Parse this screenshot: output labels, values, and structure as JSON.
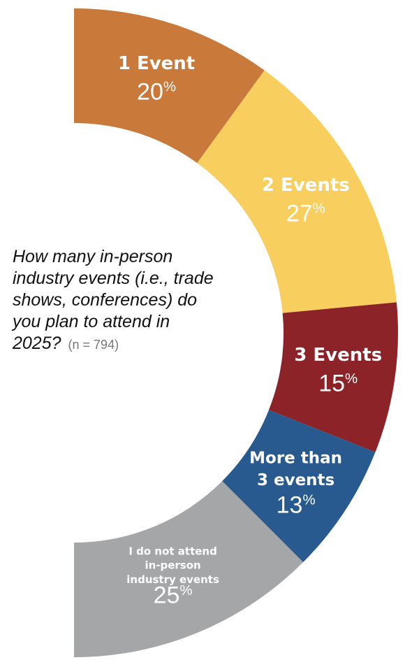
{
  "question": {
    "text": "How many in-person industry events (i.e., trade shows, conferences) do you plan to attend in 2025?",
    "n_label": "(n = 794)"
  },
  "chart_data": {
    "type": "pie",
    "variant": "half-donut",
    "categories": [
      "1 Event",
      "2 Events",
      "3 Events",
      "More than 3 events",
      "I do not attend in-person industry events"
    ],
    "values": [
      20,
      27,
      15,
      13,
      25
    ],
    "value_labels": [
      "20%",
      "27%",
      "15%",
      "13%",
      "25%"
    ],
    "colors": [
      "#C97A3A",
      "#F8CF5E",
      "#8B2329",
      "#295A8F",
      "#A5A6A8"
    ]
  }
}
